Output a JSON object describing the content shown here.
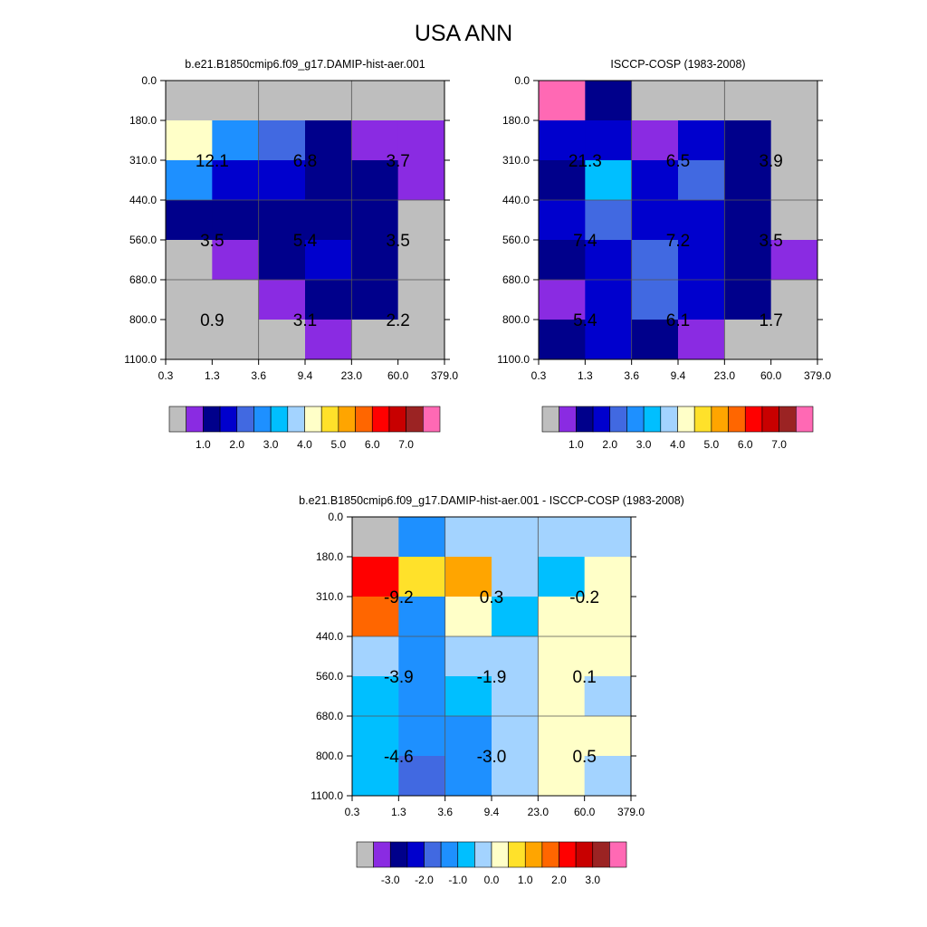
{
  "figure": {
    "title": "USA ANN"
  },
  "levels": [
    "0.0",
    "180.0",
    "310.0",
    "440.0",
    "560.0",
    "680.0",
    "800.0",
    "1100.0"
  ],
  "tau": [
    "0.3",
    "1.3",
    "3.6",
    "9.4",
    "23.0",
    "60.0",
    "379.0"
  ],
  "colors": {
    "grey": "#bebebe",
    "palette": [
      "#bebebe",
      "#8a2be2",
      "#00008b",
      "#0000cd",
      "#4169e1",
      "#1e90ff",
      "#00bfff",
      "#a3d3ff",
      "#ffffc8",
      "#ffe12a",
      "#ffa500",
      "#ff6600",
      "#ff0000",
      "#c80000",
      "#9b2323",
      "#ff69b4"
    ]
  },
  "colorbars": {
    "abs": {
      "labels": [
        "1.0",
        "2.0",
        "3.0",
        "4.0",
        "5.0",
        "6.0",
        "7.0"
      ]
    },
    "diff": {
      "labels": [
        "-3.0",
        "-2.0",
        "-1.0",
        "0.0",
        "1.0",
        "2.0",
        "3.0"
      ]
    }
  },
  "chart_data": [
    {
      "type": "heatmap",
      "title": "b.e21.B1850cmip6.f09_g17.DAMIP-hist-aer.001",
      "colorbar": "abs",
      "x_tick_labels": [
        "0.3",
        "1.3",
        "3.6",
        "9.4",
        "23.0",
        "60.0",
        "379.0"
      ],
      "y_tick_labels": [
        "0.0",
        "180.0",
        "310.0",
        "440.0",
        "560.0",
        "680.0",
        "800.0",
        "1100.0"
      ],
      "cell_color_index": [
        [
          0,
          0,
          0,
          0,
          0,
          0
        ],
        [
          8,
          5,
          4,
          2,
          1,
          1
        ],
        [
          5,
          3,
          3,
          2,
          2,
          1
        ],
        [
          2,
          2,
          2,
          2,
          2,
          0
        ],
        [
          0,
          1,
          2,
          3,
          2,
          0
        ],
        [
          0,
          0,
          1,
          2,
          2,
          0
        ],
        [
          0,
          0,
          0,
          1,
          0,
          0
        ]
      ],
      "block_values": [
        [
          "12.1",
          "6.8",
          "3.7"
        ],
        [
          "3.5",
          "5.4",
          "3.5"
        ],
        [
          "0.9",
          "3.1",
          "2.2"
        ]
      ]
    },
    {
      "type": "heatmap",
      "title": "ISCCP-COSP (1983-2008)",
      "colorbar": "abs",
      "x_tick_labels": [
        "0.3",
        "1.3",
        "3.6",
        "9.4",
        "23.0",
        "60.0",
        "379.0"
      ],
      "y_tick_labels": [
        "0.0",
        "180.0",
        "310.0",
        "440.0",
        "560.0",
        "680.0",
        "800.0",
        "1100.0"
      ],
      "cell_color_index": [
        [
          15,
          2,
          0,
          0,
          0,
          0
        ],
        [
          3,
          3,
          1,
          3,
          2,
          0
        ],
        [
          2,
          6,
          3,
          4,
          2,
          0
        ],
        [
          3,
          4,
          3,
          3,
          2,
          0
        ],
        [
          2,
          3,
          4,
          3,
          2,
          1
        ],
        [
          1,
          3,
          4,
          3,
          2,
          0
        ],
        [
          2,
          3,
          2,
          1,
          0,
          0
        ]
      ],
      "block_values": [
        [
          "21.3",
          "6.5",
          "3.9"
        ],
        [
          "7.4",
          "7.2",
          "3.5"
        ],
        [
          "5.4",
          "6.1",
          "1.7"
        ]
      ]
    },
    {
      "type": "heatmap",
      "title": "b.e21.B1850cmip6.f09_g17.DAMIP-hist-aer.001 - ISCCP-COSP (1983-2008)",
      "colorbar": "diff",
      "x_tick_labels": [
        "0.3",
        "1.3",
        "3.6",
        "9.4",
        "23.0",
        "60.0",
        "379.0"
      ],
      "y_tick_labels": [
        "0.0",
        "180.0",
        "310.0",
        "440.0",
        "560.0",
        "680.0",
        "800.0",
        "1100.0"
      ],
      "cell_color_index": [
        [
          0,
          5,
          7,
          7,
          7,
          7
        ],
        [
          12,
          9,
          10,
          7,
          6,
          8
        ],
        [
          11,
          5,
          8,
          6,
          8,
          8
        ],
        [
          7,
          5,
          7,
          7,
          8,
          8
        ],
        [
          6,
          5,
          6,
          7,
          8,
          7
        ],
        [
          6,
          5,
          5,
          7,
          8,
          8
        ],
        [
          6,
          4,
          5,
          7,
          8,
          7
        ]
      ],
      "block_values": [
        [
          "-9.2",
          "0.3",
          "-0.2"
        ],
        [
          "-3.9",
          "-1.9",
          "0.1"
        ],
        [
          "-4.6",
          "-3.0",
          "0.5"
        ]
      ]
    }
  ]
}
